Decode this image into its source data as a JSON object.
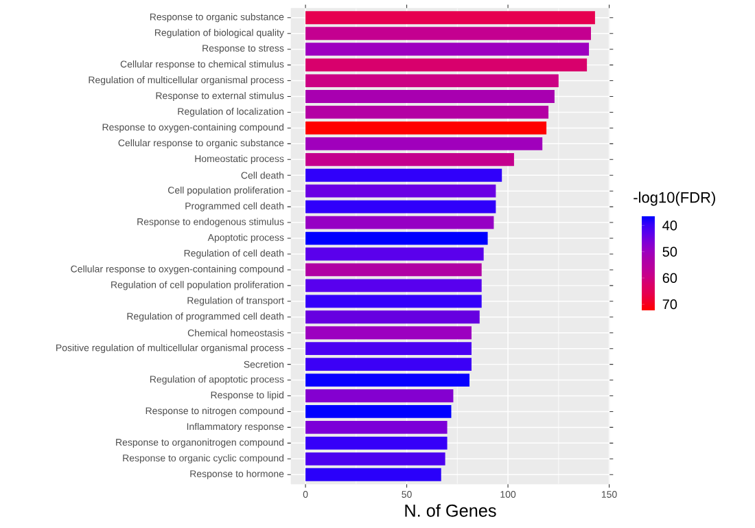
{
  "chart_data": {
    "type": "bar",
    "orientation": "horizontal",
    "xlabel": "N. of Genes",
    "clabel": "-log10(FDR)",
    "categories": [
      "Response to organic substance",
      "Regulation of biological quality",
      "Response to stress",
      "Cellular response to chemical stimulus",
      "Regulation of multicellular organismal process",
      "Response to external stimulus",
      "Regulation of localization",
      "Response to oxygen-containing compound",
      "Cellular response to organic substance",
      "Homeostatic process",
      "Cell death",
      "Cell population proliferation",
      "Programmed cell death",
      "Response to endogenous stimulus",
      "Apoptotic process",
      "Regulation of cell death",
      "Cellular response to oxygen-containing compound",
      "Regulation of cell population proliferation",
      "Regulation of transport",
      "Regulation of programmed cell death",
      "Chemical homeostasis",
      "Positive regulation of multicellular organismal process",
      "Secretion",
      "Regulation of apoptotic process",
      "Response to lipid",
      "Response to nitrogen compound",
      "Inflammatory response",
      "Response to organonitrogen compound",
      "Response to organic cyclic compound",
      "Response to hormone"
    ],
    "values": [
      143,
      141,
      140,
      139,
      125,
      123,
      120,
      119,
      117,
      103,
      97,
      94,
      94,
      93,
      90,
      88,
      87,
      87,
      87,
      86,
      82,
      82,
      82,
      81,
      73,
      72,
      70,
      70,
      69,
      67
    ],
    "colors": [
      "#e60050",
      "#c40090",
      "#9e00c0",
      "#d8006c",
      "#cc0084",
      "#a800b0",
      "#b400a4",
      "#ff0000",
      "#a000bc",
      "#c4008e",
      "#3000fa",
      "#6a00e4",
      "#3000fa",
      "#9600c4",
      "#0000ff",
      "#5a00ec",
      "#b000a4",
      "#5800ee",
      "#3400fa",
      "#6600e0",
      "#9c00c0",
      "#4a00f2",
      "#3c00f6",
      "#0800ff",
      "#8400d0",
      "#0000ff",
      "#7c00d8",
      "#3600f8",
      "#4c00f0",
      "#2a00fa"
    ],
    "cvalues": [
      66,
      58,
      50,
      62,
      60,
      52,
      55,
      72.3,
      51,
      58,
      39,
      44,
      39,
      49,
      36.5,
      43,
      54,
      42,
      39,
      44,
      50,
      41,
      40,
      37,
      47,
      36.5,
      46,
      39,
      41,
      38
    ],
    "xlim": [
      -7.15,
      150.15
    ],
    "xticks": [
      0,
      50,
      100,
      150
    ],
    "clim": [
      36.5,
      72.3
    ],
    "cticks": [
      40,
      50,
      60,
      70
    ],
    "grid": true
  }
}
